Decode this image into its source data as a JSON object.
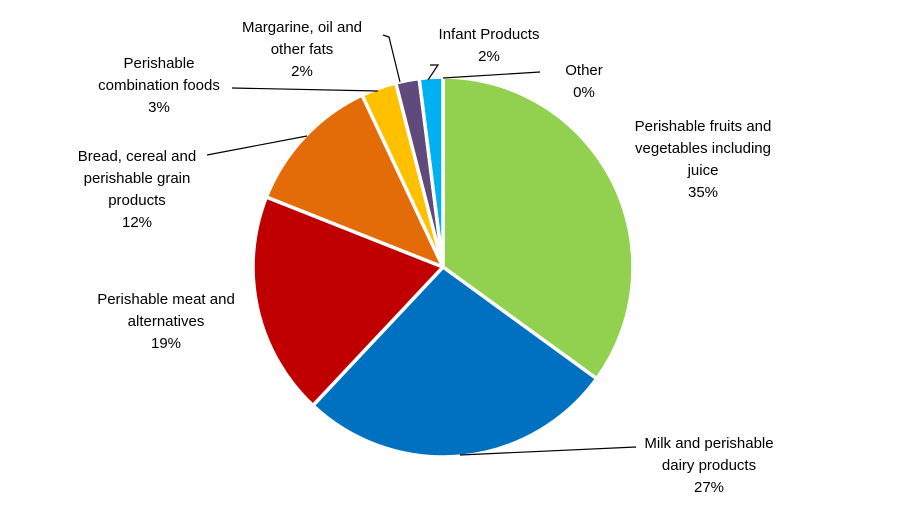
{
  "chart_data": {
    "type": "pie",
    "title": "",
    "slices": [
      {
        "label": [
          "Perishable fruits and",
          "vegetables including",
          "juice"
        ],
        "value": 35,
        "display": "35%",
        "color": "#92D050"
      },
      {
        "label": [
          "Milk and perishable",
          "dairy products"
        ],
        "value": 27,
        "display": "27%",
        "color": "#0070C0"
      },
      {
        "label": [
          "Perishable meat and",
          "alternatives"
        ],
        "value": 19,
        "display": "19%",
        "color": "#C00000"
      },
      {
        "label": [
          "Bread, cereal and",
          "perishable grain",
          "products"
        ],
        "value": 12,
        "display": "12%",
        "color": "#E36C09"
      },
      {
        "label": [
          "Perishable",
          "combination foods"
        ],
        "value": 3,
        "display": "3%",
        "color": "#FFC000"
      },
      {
        "label": [
          "Margarine, oil and",
          "other fats"
        ],
        "value": 2,
        "display": "2%",
        "color": "#604A7B"
      },
      {
        "label": [
          "Infant Products"
        ],
        "value": 2,
        "display": "2%",
        "color": "#00B0F0"
      },
      {
        "label": [
          "Other"
        ],
        "value": 0,
        "display": "0%",
        "color": "#A6A6A6"
      }
    ]
  }
}
